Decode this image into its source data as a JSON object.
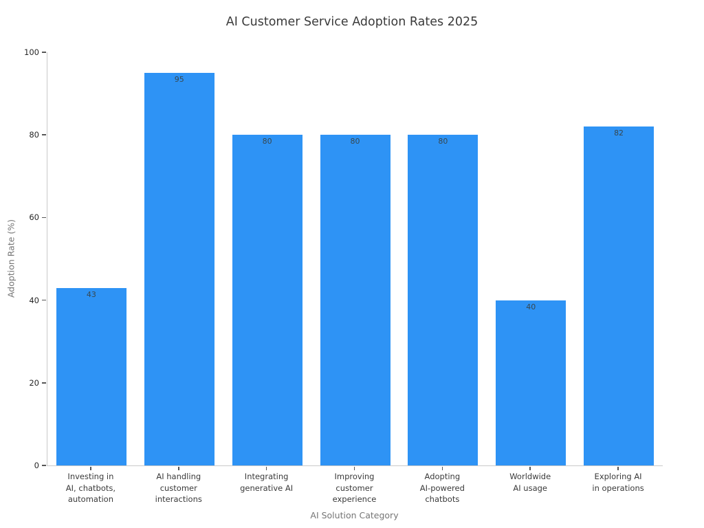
{
  "chart_data": {
    "type": "bar",
    "title": "AI Customer Service Adoption Rates 2025",
    "xlabel": "AI Solution Category",
    "ylabel": "Adoption Rate (%)",
    "categories": [
      "Investing in\nAI, chatbots,\nautomation",
      "AI handling\ncustomer\ninteractions",
      "Integrating\ngenerative AI",
      "Improving\ncustomer\nexperience",
      "Adopting\nAI-powered\nchatbots",
      "Worldwide\nAI usage",
      "Exploring AI\nin operations"
    ],
    "values": [
      43,
      95,
      80,
      80,
      80,
      40,
      82
    ],
    "value_labels": [
      "43",
      "95",
      "80",
      "80",
      "80",
      "40",
      "82"
    ],
    "ylim": [
      0,
      100
    ],
    "yticks": [
      "0",
      "20",
      "40",
      "60",
      "80",
      "100"
    ],
    "grid": false,
    "legend": null,
    "value_label_position": "inside-top"
  },
  "colors": {
    "bar_fill": "#2E93F5",
    "value_label_text": "#37474f",
    "title_text": "#3a3a3a",
    "tick_text": "#262626",
    "axis_label_text": "#757575",
    "spine": "#c9c9c9",
    "tick_mark": "#555555",
    "background": "#ffffff"
  }
}
